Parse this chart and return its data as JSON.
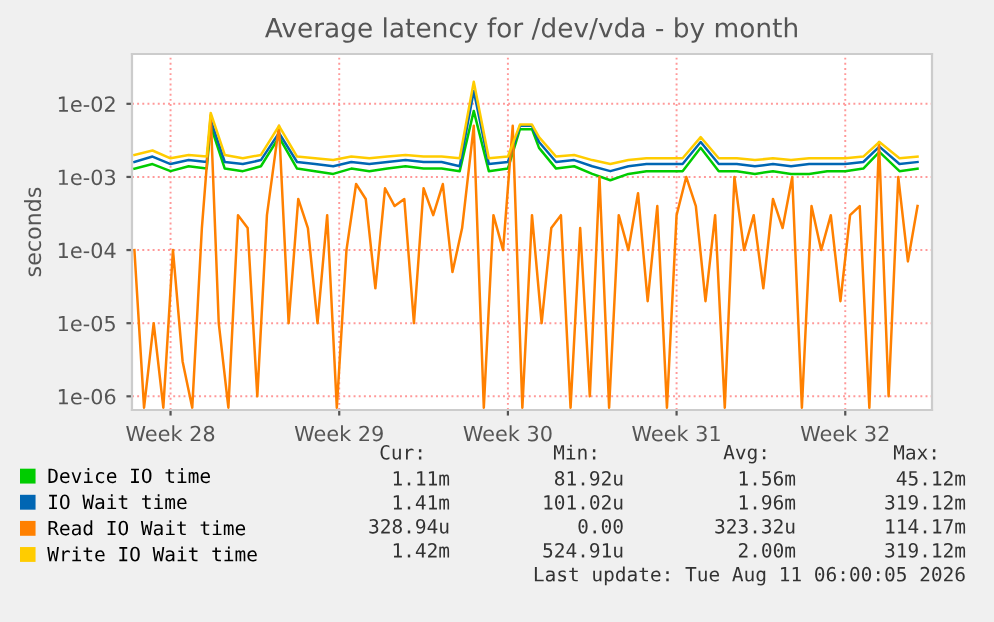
{
  "chart_data": {
    "type": "line",
    "title": "Average latency for /dev/vda - by month",
    "ylabel": "seconds",
    "x": [
      "2026-07-04T12:00",
      "2026-07-05T06:00",
      "2026-07-06T00:00",
      "2026-07-06T18:00",
      "2026-07-07T12:00",
      "2026-07-07T16:00",
      "2026-07-08T06:00",
      "2026-07-09T00:00",
      "2026-07-09T18:00",
      "2026-07-10T12:00",
      "2026-07-11T06:00",
      "2026-07-12T00:00",
      "2026-07-12T18:00",
      "2026-07-13T12:00",
      "2026-07-14T06:00",
      "2026-07-15T00:00",
      "2026-07-15T18:00",
      "2026-07-16T12:00",
      "2026-07-17T06:00",
      "2026-07-18T00:00",
      "2026-07-18T14:00",
      "2026-07-19T05:00",
      "2026-07-20T00:00",
      "2026-07-20T12:00",
      "2026-07-21T00:00",
      "2026-07-21T07:00",
      "2026-07-22T00:00",
      "2026-07-22T18:00",
      "2026-07-23T12:00",
      "2026-07-24T06:00",
      "2026-07-25T00:00",
      "2026-07-25T18:00",
      "2026-07-26T12:00",
      "2026-07-27T06:00",
      "2026-07-28T00:00",
      "2026-07-28T18:00",
      "2026-07-29T12:00",
      "2026-07-30T06:00",
      "2026-07-31T00:00",
      "2026-07-31T18:00",
      "2026-08-01T12:00",
      "2026-08-02T06:00",
      "2026-08-03T00:00",
      "2026-08-03T18:00",
      "2026-08-04T10:00",
      "2026-08-05T06:00",
      "2026-08-06T00:00"
    ],
    "series": [
      {
        "name": "Device IO time",
        "color": "#00cc00",
        "values": [
          0.0013,
          0.0015,
          0.0012,
          0.0014,
          0.0013,
          0.005,
          0.0013,
          0.0012,
          0.0014,
          0.0035,
          0.0013,
          0.0012,
          0.0011,
          0.0013,
          0.0012,
          0.0013,
          0.0014,
          0.0013,
          0.0013,
          0.0012,
          0.008,
          0.0012,
          0.0013,
          0.0045,
          0.0045,
          0.0025,
          0.0013,
          0.0014,
          0.0011,
          0.0009,
          0.0011,
          0.0012,
          0.0012,
          0.0012,
          0.0025,
          0.0012,
          0.0012,
          0.0011,
          0.0012,
          0.0011,
          0.0011,
          0.0012,
          0.0012,
          0.0013,
          0.0022,
          0.0012,
          0.0013
        ]
      },
      {
        "name": "IO Wait time",
        "color": "#0066b3",
        "values": [
          0.0016,
          0.0019,
          0.0015,
          0.0017,
          0.0016,
          0.006,
          0.0016,
          0.0015,
          0.0017,
          0.004,
          0.0016,
          0.0015,
          0.0014,
          0.0016,
          0.0015,
          0.0016,
          0.0017,
          0.0016,
          0.0016,
          0.0014,
          0.015,
          0.0015,
          0.0016,
          0.005,
          0.005,
          0.003,
          0.0016,
          0.0017,
          0.0014,
          0.0012,
          0.0014,
          0.0015,
          0.0015,
          0.0015,
          0.003,
          0.0015,
          0.0015,
          0.0014,
          0.0015,
          0.0014,
          0.0015,
          0.0015,
          0.0015,
          0.0016,
          0.0026,
          0.0015,
          0.0016
        ]
      },
      {
        "name": "Read IO Wait time",
        "color": "#ff8000",
        "x": [
          "2026-07-04T12:00",
          "2026-07-04T21:36",
          "2026-07-05T07:12",
          "2026-07-05T16:48",
          "2026-07-06T02:24",
          "2026-07-06T12:00",
          "2026-07-06T21:36",
          "2026-07-07T07:12",
          "2026-07-07T16:00",
          "2026-07-08T00:00",
          "2026-07-08T09:36",
          "2026-07-08T19:12",
          "2026-07-09T04:48",
          "2026-07-09T14:24",
          "2026-07-10T00:00",
          "2026-07-10T12:00",
          "2026-07-10T21:36",
          "2026-07-11T07:12",
          "2026-07-11T16:48",
          "2026-07-12T02:24",
          "2026-07-12T12:00",
          "2026-07-12T21:36",
          "2026-07-13T07:12",
          "2026-07-13T16:48",
          "2026-07-14T02:24",
          "2026-07-14T12:00",
          "2026-07-14T21:36",
          "2026-07-15T07:12",
          "2026-07-15T16:48",
          "2026-07-16T02:24",
          "2026-07-16T12:00",
          "2026-07-16T21:36",
          "2026-07-17T07:12",
          "2026-07-17T16:48",
          "2026-07-18T02:24",
          "2026-07-18T14:00",
          "2026-07-19T00:00",
          "2026-07-19T09:36",
          "2026-07-19T19:12",
          "2026-07-20T04:48",
          "2026-07-20T14:24",
          "2026-07-21T00:00",
          "2026-07-21T09:36",
          "2026-07-21T19:12",
          "2026-07-22T04:48",
          "2026-07-22T14:24",
          "2026-07-23T00:00",
          "2026-07-23T09:36",
          "2026-07-23T19:12",
          "2026-07-24T04:48",
          "2026-07-24T14:24",
          "2026-07-25T00:00",
          "2026-07-25T09:36",
          "2026-07-25T19:12",
          "2026-07-26T04:48",
          "2026-07-26T14:24",
          "2026-07-27T00:00",
          "2026-07-27T09:36",
          "2026-07-27T19:12",
          "2026-07-28T04:48",
          "2026-07-28T14:24",
          "2026-07-29T00:00",
          "2026-07-29T09:36",
          "2026-07-29T19:12",
          "2026-07-30T04:48",
          "2026-07-30T14:24",
          "2026-07-31T00:00",
          "2026-07-31T09:36",
          "2026-07-31T19:12",
          "2026-08-01T04:48",
          "2026-08-01T14:24",
          "2026-08-02T00:00",
          "2026-08-02T09:36",
          "2026-08-02T19:12",
          "2026-08-03T04:48",
          "2026-08-03T14:24",
          "2026-08-04T00:00",
          "2026-08-04T09:36",
          "2026-08-04T19:12",
          "2026-08-05T04:48",
          "2026-08-05T14:24",
          "2026-08-06T00:00"
        ],
        "values": [
          0.0001,
          7e-07,
          1e-05,
          7e-07,
          0.0001,
          3e-06,
          7e-07,
          0.0002,
          0.007,
          1e-05,
          7e-07,
          0.0003,
          0.0002,
          1e-06,
          0.0003,
          0.005,
          1e-05,
          0.0005,
          0.0002,
          1e-05,
          0.0003,
          7e-07,
          0.0001,
          0.0008,
          0.0005,
          3e-05,
          0.0007,
          0.0004,
          0.0005,
          1e-05,
          0.0007,
          0.0003,
          0.0008,
          5e-05,
          0.0002,
          0.005,
          7e-07,
          0.0003,
          0.0001,
          0.005,
          7e-07,
          0.0003,
          1e-05,
          0.0002,
          0.0003,
          7e-07,
          0.0002,
          1e-06,
          0.001,
          7e-07,
          0.0003,
          0.0001,
          0.0006,
          2e-05,
          0.0004,
          7e-07,
          0.0003,
          0.001,
          0.0004,
          2e-05,
          0.0003,
          7e-07,
          0.001,
          0.0001,
          0.0003,
          3e-05,
          0.0005,
          0.0002,
          0.001,
          7e-07,
          0.0004,
          0.0001,
          0.0003,
          2e-05,
          0.0003,
          0.0004,
          7e-07,
          0.003,
          1e-06,
          0.001,
          7e-05,
          0.0004
        ]
      },
      {
        "name": "Write IO Wait time",
        "color": "#ffcc00",
        "values": [
          0.002,
          0.0023,
          0.0018,
          0.002,
          0.0019,
          0.0075,
          0.002,
          0.0018,
          0.002,
          0.005,
          0.0019,
          0.0018,
          0.0017,
          0.0019,
          0.0018,
          0.0019,
          0.002,
          0.0019,
          0.0019,
          0.0018,
          0.02,
          0.0018,
          0.0019,
          0.0052,
          0.0052,
          0.0035,
          0.0019,
          0.002,
          0.0017,
          0.0015,
          0.0017,
          0.0018,
          0.0018,
          0.0018,
          0.0035,
          0.0018,
          0.0018,
          0.0017,
          0.0018,
          0.0017,
          0.0018,
          0.0018,
          0.0018,
          0.0019,
          0.003,
          0.0018,
          0.0019
        ]
      }
    ],
    "log": "y",
    "xlim": [
      "2026-07-04T09:36",
      "2026-08-06T14:24"
    ],
    "ylim": [
      6.5e-07,
      0.048
    ],
    "xticks": [
      {
        "value": "2026-07-06",
        "label": "Week 28"
      },
      {
        "value": "2026-07-13",
        "label": "Week 29"
      },
      {
        "value": "2026-07-20",
        "label": "Week 30"
      },
      {
        "value": "2026-07-27",
        "label": "Week 31"
      },
      {
        "value": "2026-08-03",
        "label": "Week 32"
      }
    ],
    "yticks": [
      {
        "value": 1e-06,
        "label": "1e-06"
      },
      {
        "value": 1e-05,
        "label": "1e-05"
      },
      {
        "value": 0.0001,
        "label": "1e-04"
      },
      {
        "value": 0.001,
        "label": "1e-03"
      },
      {
        "value": 0.01,
        "label": "1e-02"
      }
    ],
    "grid": true,
    "legend": "bottom",
    "annotations": [
      "Cur:",
      "Min:",
      "Avg:",
      "Max:",
      "1.11m",
      "81.92u",
      "1.56m",
      "45.12m",
      "1.41m",
      "101.02u",
      "1.96m",
      "319.12m",
      "328.94u",
      "0.00",
      "323.32u",
      "114.17m",
      "1.42m",
      "524.91u",
      "2.00m",
      "319.12m",
      "Last update: Tue Aug 11 06:00:05 2026"
    ]
  }
}
